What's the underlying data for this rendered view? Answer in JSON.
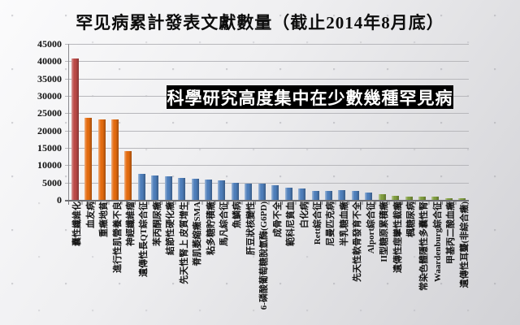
{
  "slide": {
    "title": "罕见病累計發表文獻數量（截止2014年8月底）",
    "annotation": "科學研究高度集中在少數幾種罕見病"
  },
  "colors": {
    "red": "#BB4A47",
    "orange": "#E36B0F",
    "blue": "#4E7EBA",
    "green": "#809D3F",
    "banner_bg": "#000000",
    "banner_text": "#FFFFFF",
    "gridline": "#B7B7BB"
  },
  "chart_data": {
    "type": "bar",
    "title": "罕见病累計發表文獻數量（截止2014年8月底）",
    "annotation": "科學研究高度集中在少數幾種罕見病",
    "xlabel": "",
    "ylabel": "",
    "ylim": [
      0,
      45000
    ],
    "ytick_step": 5000,
    "yticks": [
      45000,
      40000,
      35000,
      30000,
      25000,
      20000,
      15000,
      10000,
      5000,
      0
    ],
    "grid": true,
    "legend_position": "none",
    "categories": [
      "囊性纖維化",
      "血友病",
      "重癥地貧",
      "進行性肌營養不良",
      "神經纖維瘤",
      "遺傳性長QT綜合征",
      "苯丙酮尿癥",
      "結節性硬化癥",
      "先天性腎上 皮質增生",
      "脊肌萎縮癥SMA",
      "粘多糖貯積癥",
      "馬凡綜合征",
      "魚鱗病",
      "肝豆狀核變性",
      "6-磷酸葡萄糖脫氫酶(G6PD)",
      "成骨不全",
      "範科尼貧血",
      "白化病",
      "Rett綜合征",
      "尼曼匹克病",
      "半乳糖血癥",
      "先天性軟骨發育不全",
      "Alport綜合征",
      "II型糖原累積癥",
      "遺傳性痙攣性截癱",
      "楓糖尿病",
      "常染色體隱性多囊性腎",
      "Waardenburg綜合征",
      "甲基丙二酸血癥",
      "遺傳性耳聾(非綜合癥)"
    ],
    "values": [
      40700,
      23600,
      23100,
      23100,
      14000,
      7400,
      7100,
      6900,
      6300,
      6000,
      5900,
      5700,
      4900,
      4800,
      4700,
      4300,
      3400,
      3200,
      2600,
      2600,
      2700,
      2600,
      2200,
      1600,
      1150,
      1000,
      950,
      900,
      550,
      400
    ],
    "bar_colors": [
      "#BB4A47",
      "#E36B0F",
      "#E36B0F",
      "#E36B0F",
      "#E36B0F",
      "#4E7EBA",
      "#4E7EBA",
      "#4E7EBA",
      "#4E7EBA",
      "#4E7EBA",
      "#4E7EBA",
      "#4E7EBA",
      "#4E7EBA",
      "#4E7EBA",
      "#4E7EBA",
      "#4E7EBA",
      "#4E7EBA",
      "#4E7EBA",
      "#4E7EBA",
      "#4E7EBA",
      "#4E7EBA",
      "#4E7EBA",
      "#4E7EBA",
      "#809D3F",
      "#809D3F",
      "#809D3F",
      "#809D3F",
      "#809D3F",
      "#809D3F",
      "#809D3F"
    ]
  }
}
